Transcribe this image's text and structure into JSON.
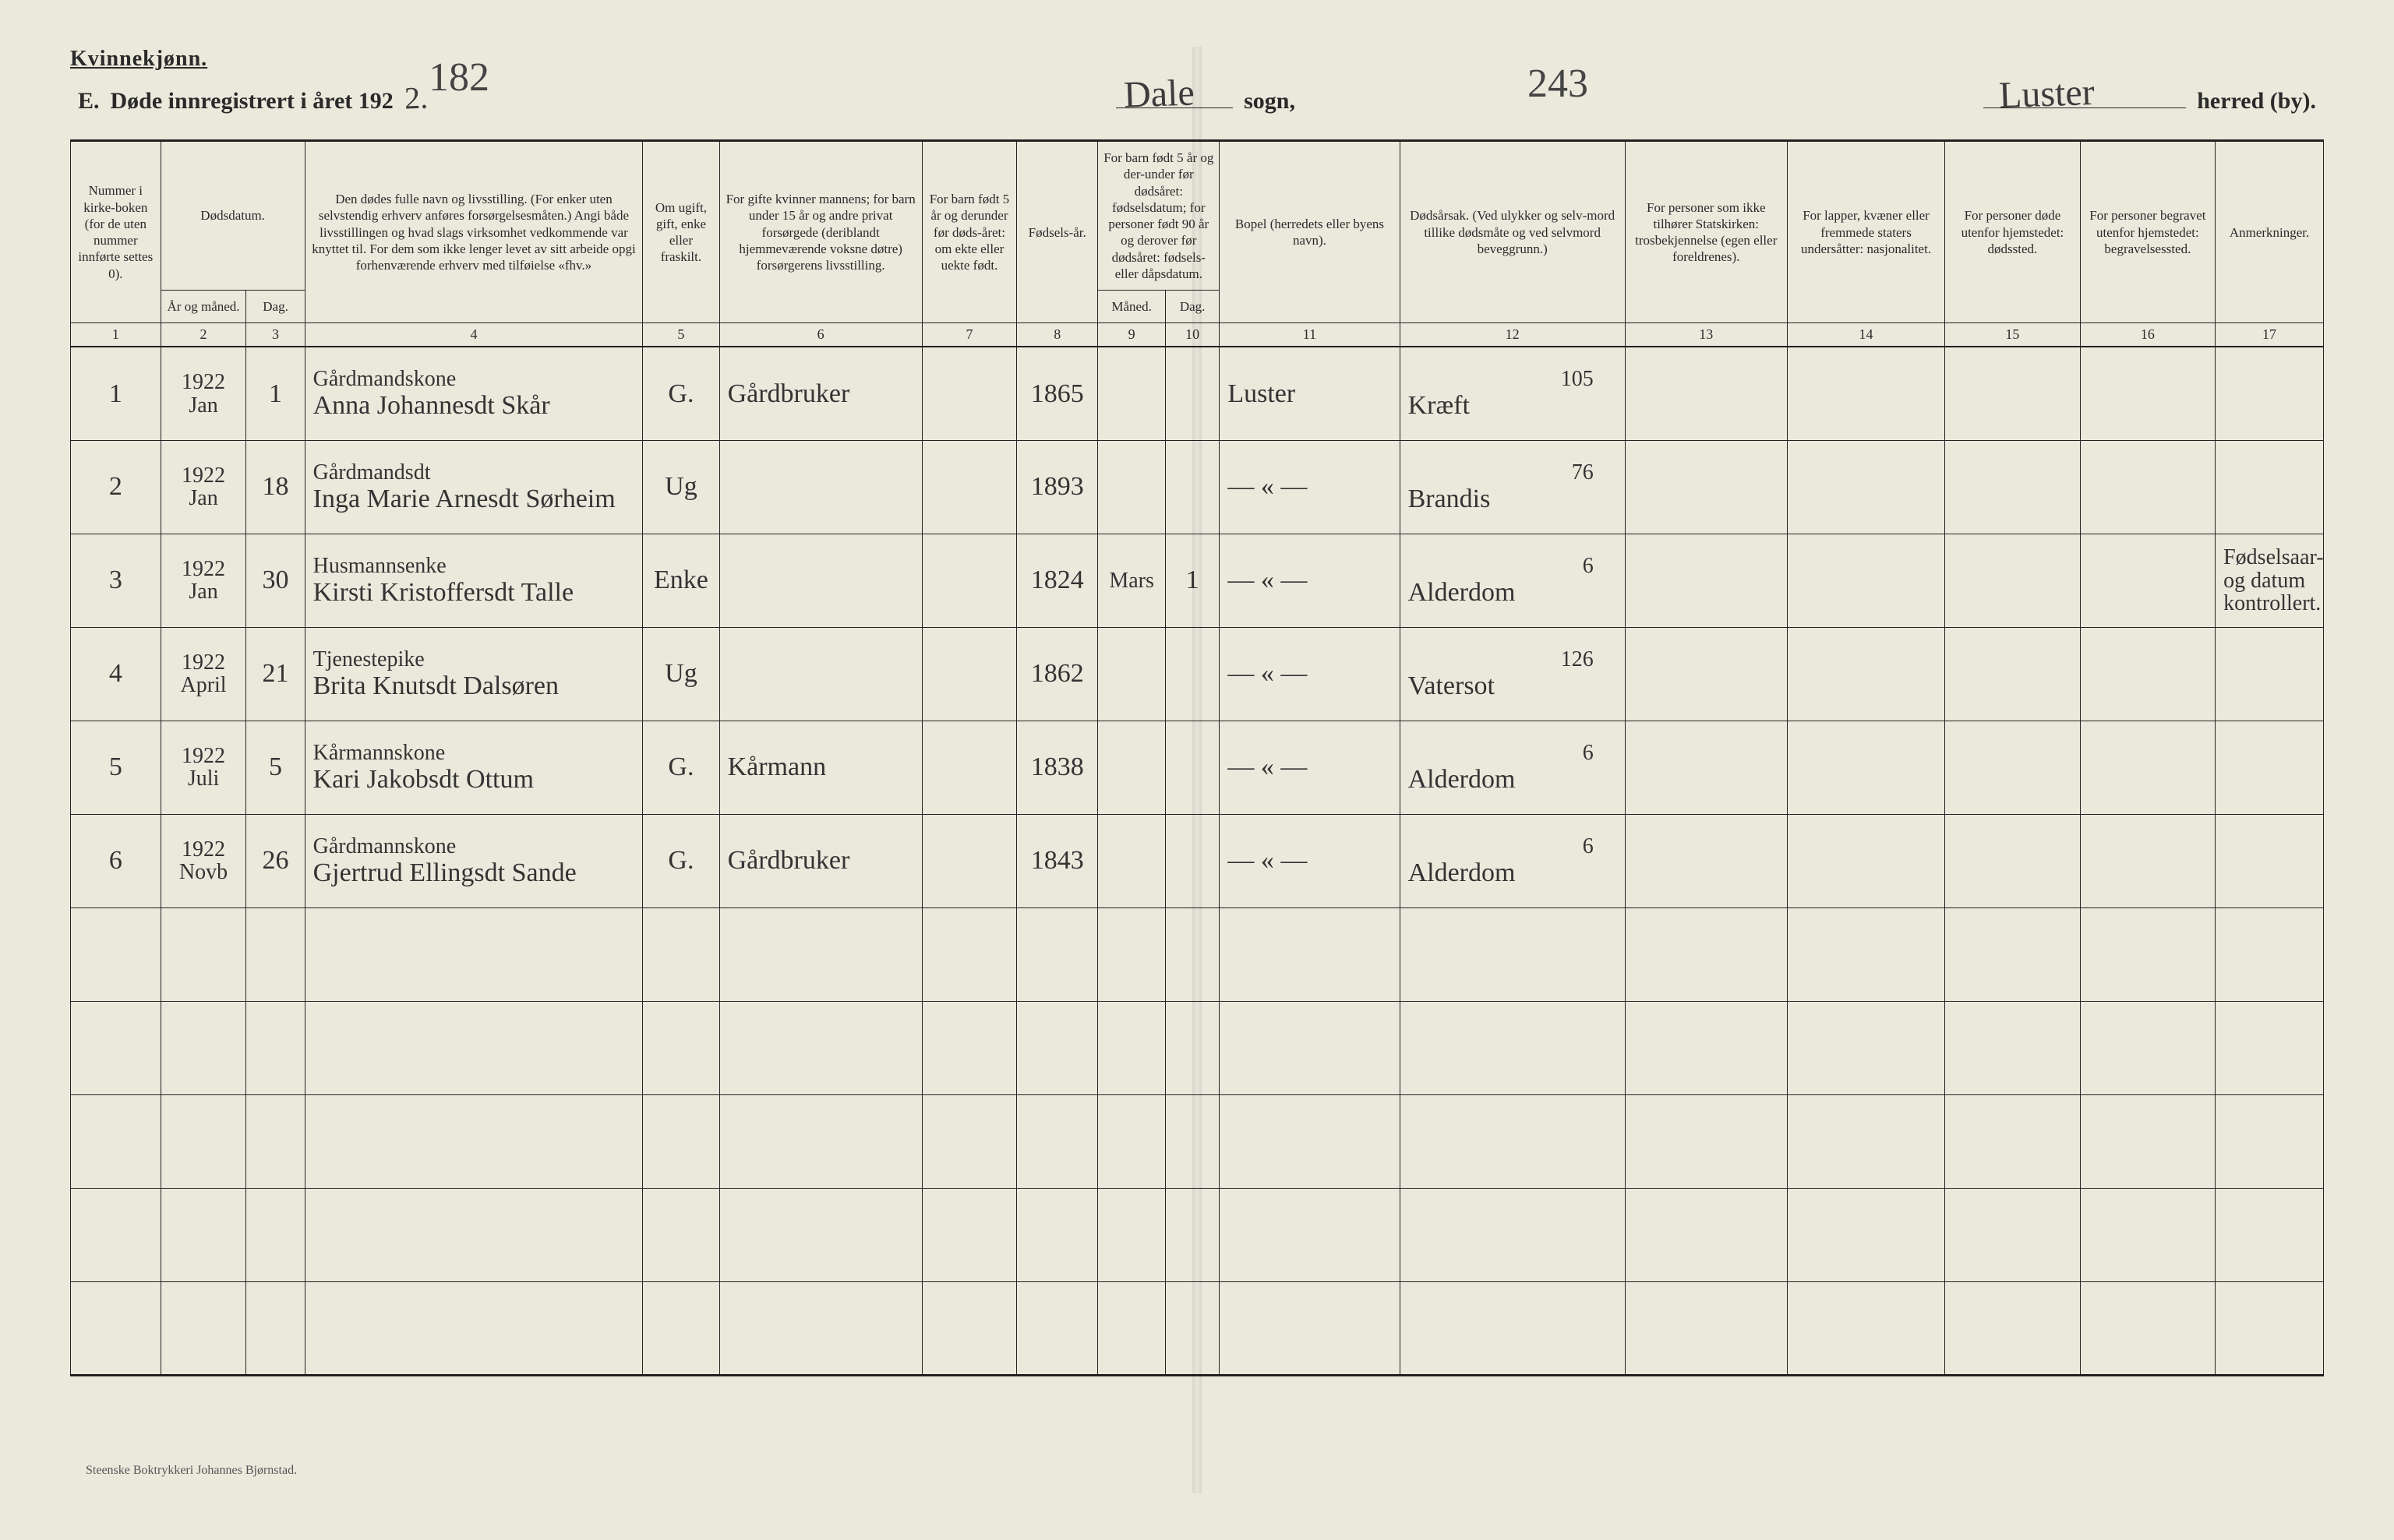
{
  "gender_label": "Kvinnekjønn.",
  "corner_left": "182",
  "corner_right": "243",
  "header": {
    "section": "E.",
    "title": "Døde innregistrert i året 192",
    "year_suffix": "2.",
    "sogn_value": "Dale",
    "sogn_label": "sogn,",
    "herred_value": "Luster",
    "herred_label": "herred (by)."
  },
  "columns": {
    "c1": "Nummer i kirke-boken (for de uten nummer innførte settes 0).",
    "c2_group": "Dødsdatum.",
    "c2": "År og måned.",
    "c3": "Dag.",
    "c4": "Den dødes fulle navn og livsstilling. (For enker uten selvstendig erhverv anføres forsørgelsesmåten.) Angi både livsstillingen og hvad slags virksomhet vedkommende var knyttet til. For dem som ikke lenger levet av sitt arbeide opgi forhenværende erhverv med tilføielse «fhv.»",
    "c5": "Om ugift, gift, enke eller fraskilt.",
    "c6": "For gifte kvinner mannens; for barn under 15 år og andre privat forsørgede (deriblandt hjemmeværende voksne døtre) forsørgerens livsstilling.",
    "c7": "For barn født 5 år og derunder før døds-året: om ekte eller uekte født.",
    "c8": "Fødsels-år.",
    "c9_10_group": "For barn født 5 år og der-under før dødsåret: fødselsdatum; for personer født 90 år og derover før dødsåret: fødsels- eller dåpsdatum.",
    "c9": "Måned.",
    "c10": "Dag.",
    "c11": "Bopel (herredets eller byens navn).",
    "c12": "Dødsårsak. (Ved ulykker og selv-mord tillike dødsmåte og ved selvmord beveggrunn.)",
    "c13": "For personer som ikke tilhører Statskirken: trosbekjennelse (egen eller foreldrenes).",
    "c14": "For lapper, kvæner eller fremmede staters undersåtter: nasjonalitet.",
    "c15": "For personer døde utenfor hjemstedet: dødssted.",
    "c16": "For personer begravet utenfor hjemstedet: begravelsessted.",
    "c17": "Anmerkninger."
  },
  "colnums": [
    "1",
    "2",
    "3",
    "4",
    "5",
    "6",
    "7",
    "8",
    "9",
    "10",
    "11",
    "12",
    "13",
    "14",
    "15",
    "16",
    "17"
  ],
  "rows": [
    {
      "num": "1",
      "year_month": "1922 Jan",
      "day": "1",
      "name_top": "Gårdmandskone",
      "name": "Anna Johannesdt Skår",
      "status": "G.",
      "provider": "Gårdbruker",
      "birth_year": "1865",
      "birth_m": "",
      "birth_d": "",
      "residence": "Luster",
      "cause_top": "105",
      "cause": "Kræft",
      "remarks": ""
    },
    {
      "num": "2",
      "year_month": "1922 Jan",
      "day": "18",
      "name_top": "Gårdmandsdt",
      "name": "Inga Marie Arnesdt Sørheim",
      "status": "Ug",
      "provider": "",
      "birth_year": "1893",
      "birth_m": "",
      "birth_d": "",
      "residence": "— « —",
      "cause_top": "76",
      "cause": "Brandis",
      "remarks": ""
    },
    {
      "num": "3",
      "year_month": "1922 Jan",
      "day": "30",
      "name_top": "Husmannsenke",
      "name": "Kirsti Kristoffersdt Talle",
      "status": "Enke",
      "provider": "",
      "birth_year": "1824",
      "birth_m": "Mars",
      "birth_d": "1",
      "residence": "— « —",
      "cause_top": "6",
      "cause": "Alderdom",
      "remarks": "Fødselsaar- og datum kontrollert."
    },
    {
      "num": "4",
      "year_month": "1922 April",
      "day": "21",
      "name_top": "Tjenestepike",
      "name": "Brita Knutsdt Dalsøren",
      "status": "Ug",
      "provider": "",
      "birth_year": "1862",
      "birth_m": "",
      "birth_d": "",
      "residence": "— « —",
      "cause_top": "126",
      "cause": "Vatersot",
      "remarks": ""
    },
    {
      "num": "5",
      "year_month": "1922 Juli",
      "day": "5",
      "name_top": "Kårmannskone",
      "name": "Kari Jakobsdt Ottum",
      "status": "G.",
      "provider": "Kårmann",
      "birth_year": "1838",
      "birth_m": "",
      "birth_d": "",
      "residence": "— « —",
      "cause_top": "6",
      "cause": "Alderdom",
      "remarks": ""
    },
    {
      "num": "6",
      "year_month": "1922 Novb",
      "day": "26",
      "name_top": "Gårdmannskone",
      "name": "Gjertrud Ellingsdt Sande",
      "status": "G.",
      "provider": "Gårdbruker",
      "birth_year": "1843",
      "birth_m": "",
      "birth_d": "",
      "residence": "— « —",
      "cause_top": "6",
      "cause": "Alderdom",
      "remarks": ""
    }
  ],
  "footer": "Steenske Boktrykkeri Johannes Bjørnstad.",
  "widths_pct": [
    4.0,
    3.8,
    2.6,
    15.0,
    3.4,
    9.0,
    4.2,
    3.6,
    3.0,
    2.4,
    8.0,
    10.0,
    7.2,
    7.0,
    6.0,
    6.0,
    4.8
  ]
}
